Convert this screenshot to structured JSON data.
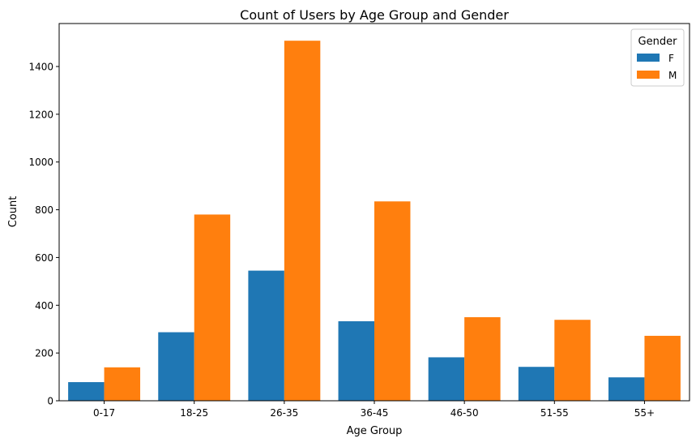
{
  "chart_data": {
    "type": "bar",
    "title": "Count of Users by Age Group and Gender",
    "xlabel": "Age Group",
    "ylabel": "Count",
    "categories": [
      "0-17",
      "18-25",
      "26-35",
      "36-45",
      "46-50",
      "51-55",
      "55+"
    ],
    "series": [
      {
        "name": "F",
        "color": "#1f77b4",
        "values": [
          78,
          287,
          545,
          333,
          182,
          142,
          98
        ]
      },
      {
        "name": "M",
        "color": "#ff7f0e",
        "values": [
          140,
          780,
          1508,
          835,
          350,
          339,
          272
        ]
      }
    ],
    "ylim": [
      0,
      1580
    ],
    "yticks": [
      0,
      200,
      400,
      600,
      800,
      1000,
      1200,
      1400
    ],
    "grid": false,
    "legend": {
      "title": "Gender",
      "position": "top-right"
    }
  }
}
